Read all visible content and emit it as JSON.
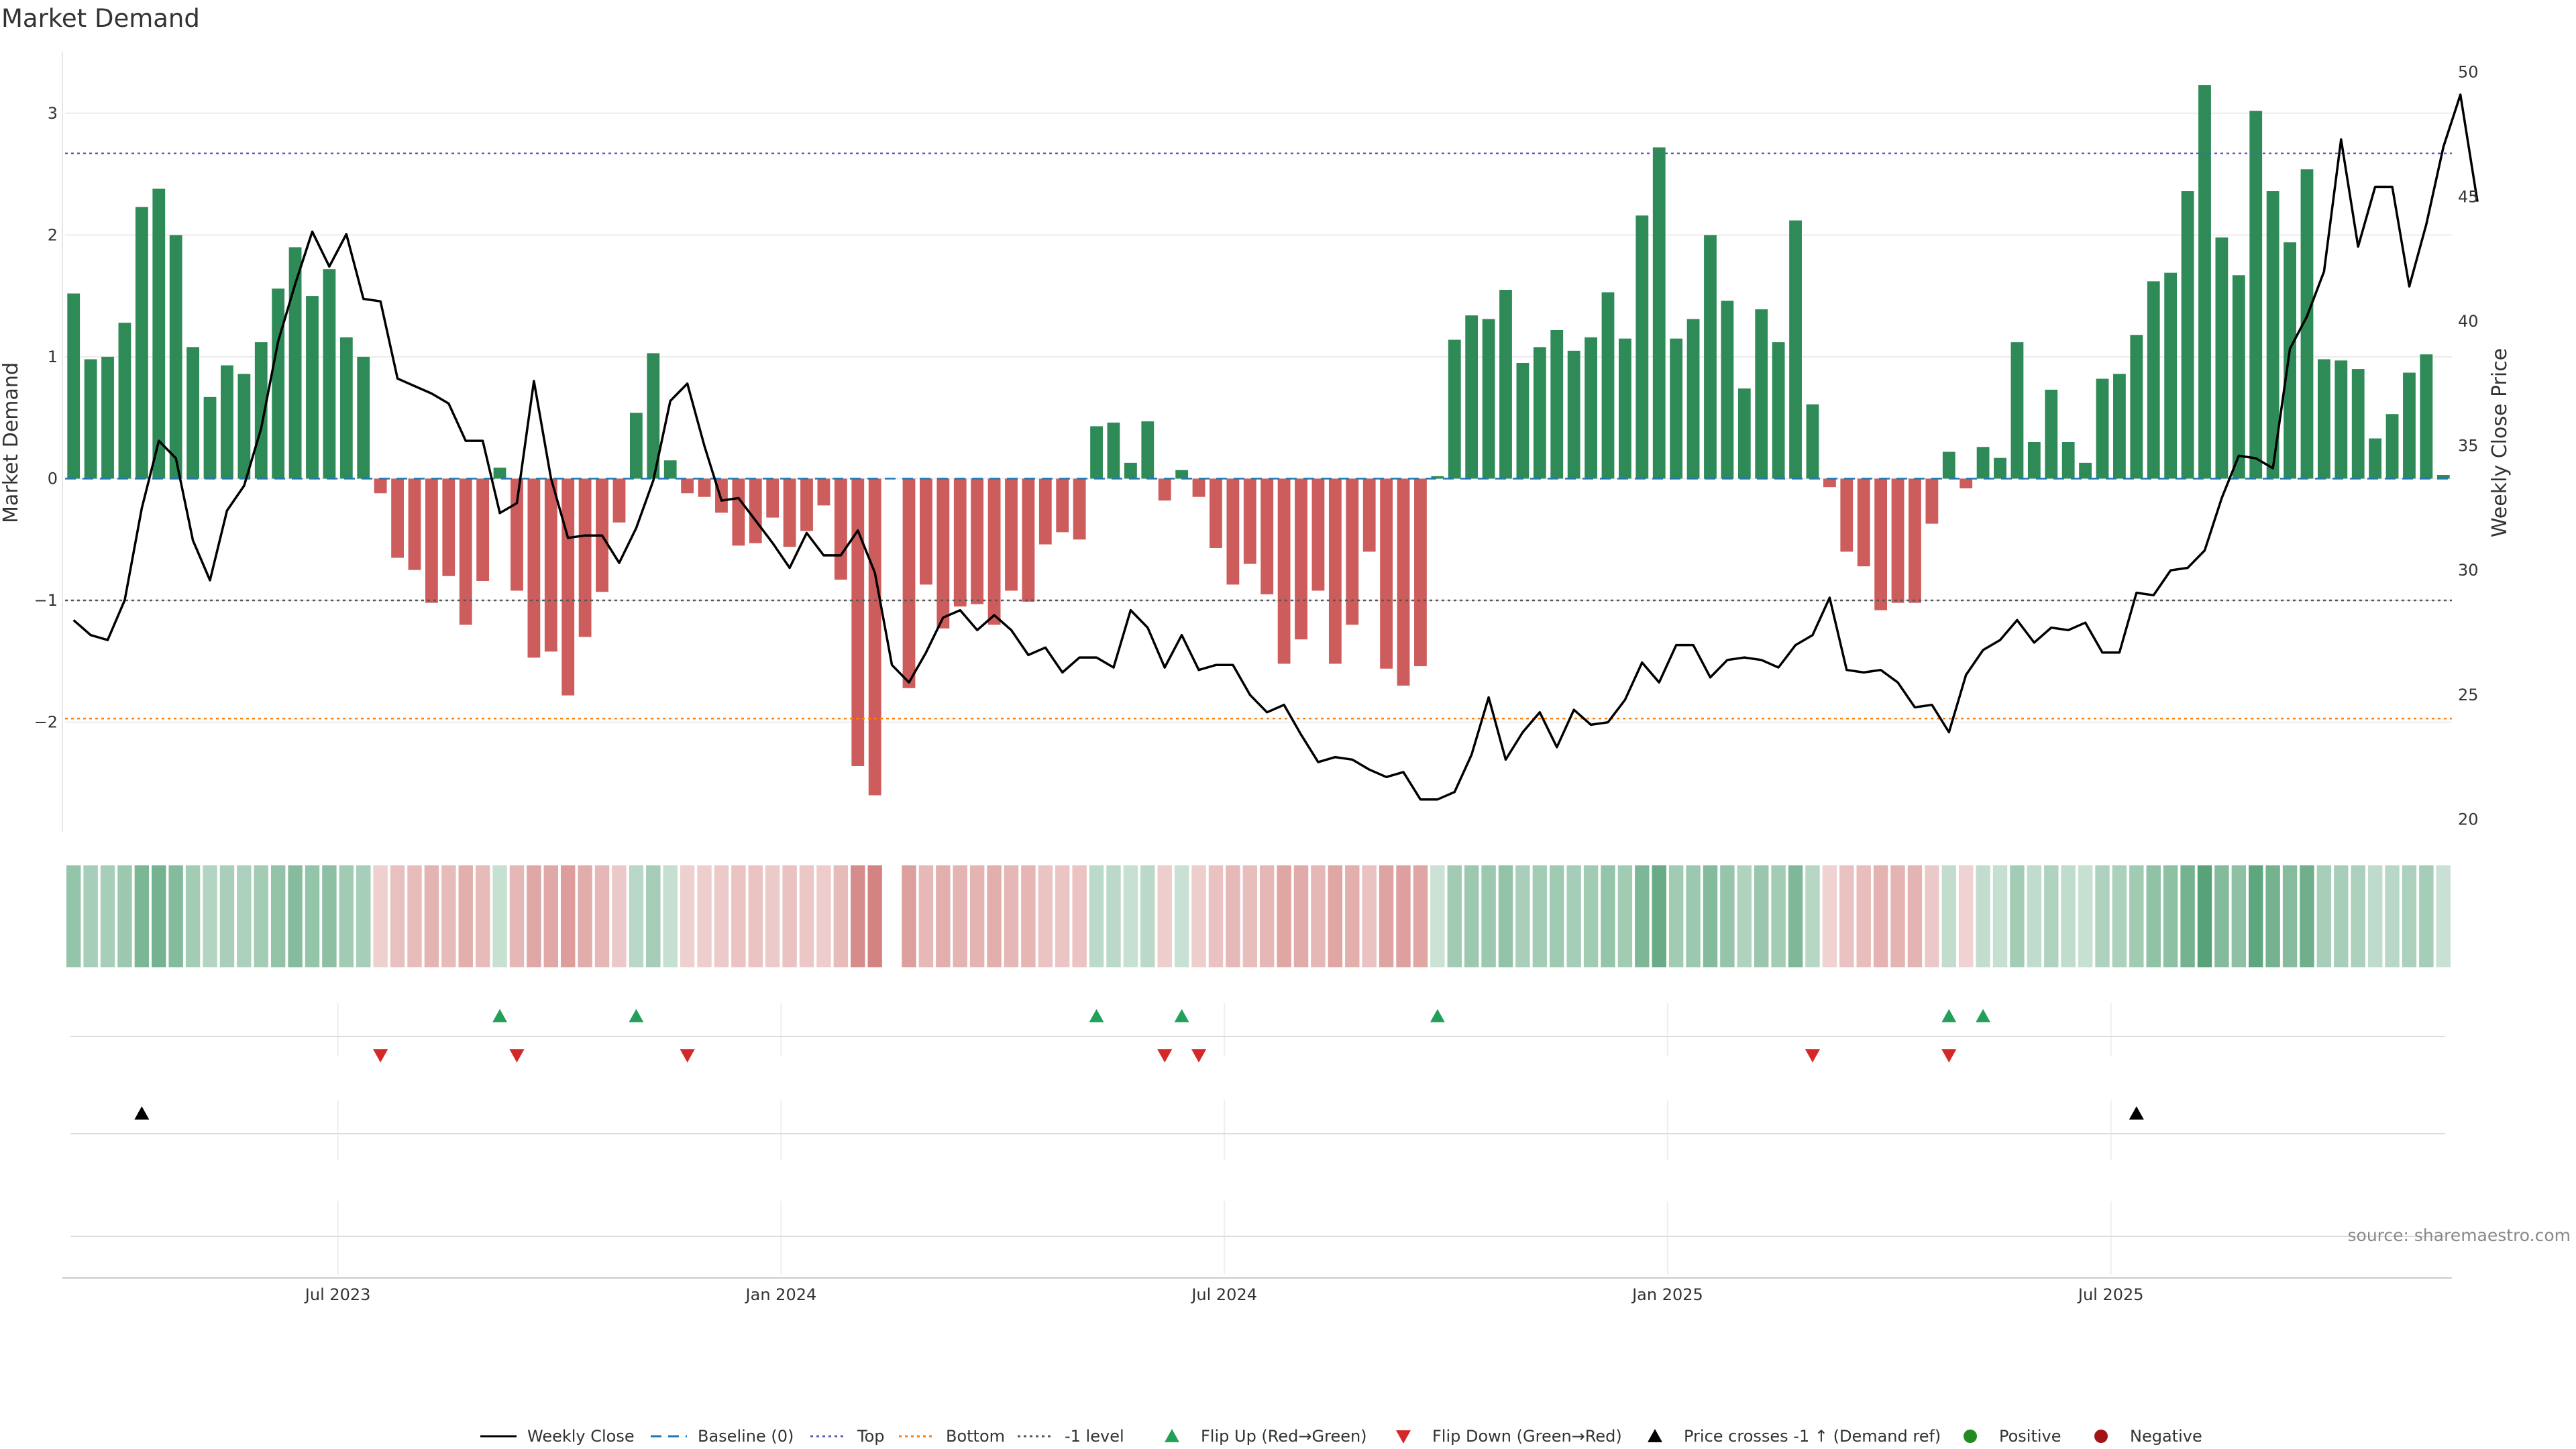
{
  "chart_data": {
    "type": "bar",
    "title": "Market Demand",
    "ylabel": "Market Demand",
    "y2label": "Weekly Close Price",
    "ylim": [
      -2.9,
      3.5
    ],
    "y2lim": [
      19.5,
      50.8
    ],
    "yticks": [
      3,
      2,
      1,
      0,
      -1,
      -2
    ],
    "ytick_labels": [
      "3",
      "2",
      "1",
      "0",
      "−1",
      "−2"
    ],
    "y2ticks": [
      50,
      45,
      40,
      35,
      30,
      25,
      20
    ],
    "xtick_labels": [
      {
        "index": 16,
        "label": "Jul 2023"
      },
      {
        "index": 42,
        "label": "Jan 2024"
      },
      {
        "index": 68,
        "label": "Jul 2024"
      },
      {
        "index": 94,
        "label": "Jan 2025"
      },
      {
        "index": 120,
        "label": "Jul 2025"
      }
    ],
    "reference_lines": {
      "baseline": 0,
      "top": 2.67,
      "bottom": -1.97,
      "minus_one": -1.0
    },
    "series": [
      {
        "name": "Market Demand",
        "type": "bar",
        "values": [
          1.52,
          0.98,
          1.0,
          1.28,
          2.23,
          2.38,
          2.0,
          1.08,
          0.67,
          0.93,
          0.86,
          1.12,
          1.56,
          1.9,
          1.5,
          1.72,
          1.16,
          1.0,
          -0.12,
          -0.65,
          -0.75,
          -1.02,
          -0.8,
          -1.2,
          -0.84,
          0.09,
          -0.92,
          -1.47,
          -1.42,
          -1.78,
          -1.3,
          -0.93,
          -0.36,
          0.54,
          1.03,
          0.15,
          -0.12,
          -0.15,
          -0.28,
          -0.55,
          -0.53,
          -0.32,
          -0.56,
          -0.43,
          -0.22,
          -0.83,
          -2.36,
          -2.6,
          0.0,
          -1.72,
          -0.87,
          -1.23,
          -1.05,
          -1.03,
          -1.2,
          -0.92,
          -1.01,
          -0.54,
          -0.44,
          -0.5,
          0.43,
          0.46,
          0.13,
          0.47,
          -0.18,
          0.07,
          -0.15,
          -0.57,
          -0.87,
          -0.7,
          -0.95,
          -1.52,
          -1.32,
          -0.92,
          -1.52,
          -1.2,
          -0.6,
          -1.56,
          -1.7,
          -1.54,
          0.02,
          1.14,
          1.34,
          1.31,
          1.55,
          0.95,
          1.08,
          1.22,
          1.05,
          1.16,
          1.53,
          1.15,
          2.16,
          2.72,
          1.15,
          1.31,
          2.0,
          1.46,
          0.74,
          1.39,
          1.12,
          2.12,
          0.61,
          -0.07,
          -0.6,
          -0.72,
          -1.08,
          -1.02,
          -1.02,
          -0.37,
          0.22,
          -0.08,
          0.26,
          0.17,
          1.12,
          0.3,
          0.73,
          0.3,
          0.13,
          0.82,
          0.86,
          1.18,
          1.62,
          1.69,
          2.36,
          3.23,
          1.98,
          1.67,
          3.02,
          2.36,
          1.94,
          2.54,
          0.98,
          0.97,
          0.9,
          0.33,
          0.53,
          0.87,
          1.02,
          0.03
        ]
      },
      {
        "name": "Weekly Close",
        "type": "line",
        "axis": "right",
        "values": [
          28.0,
          27.4,
          27.2,
          28.8,
          32.5,
          35.2,
          34.5,
          31.2,
          29.6,
          32.4,
          33.4,
          35.7,
          39.2,
          41.5,
          43.6,
          42.2,
          43.5,
          40.9,
          40.8,
          37.7,
          37.4,
          37.1,
          36.7,
          35.2,
          35.2,
          32.3,
          32.7,
          37.6,
          33.7,
          31.3,
          31.4,
          31.4,
          30.3,
          31.7,
          33.6,
          36.8,
          37.5,
          35.0,
          32.8,
          32.9,
          32.0,
          31.1,
          30.1,
          31.5,
          30.6,
          30.6,
          31.6,
          29.9,
          26.2,
          25.5,
          26.7,
          28.1,
          28.4,
          27.6,
          28.2,
          27.6,
          26.6,
          26.9,
          25.9,
          26.5,
          26.5,
          26.1,
          28.4,
          27.7,
          26.1,
          27.4,
          26.0,
          26.2,
          26.2,
          25.0,
          24.3,
          24.6,
          23.4,
          22.3,
          22.5,
          22.4,
          22.0,
          21.7,
          21.9,
          20.8,
          20.8,
          21.1,
          22.6,
          24.9,
          22.4,
          23.5,
          24.3,
          22.9,
          24.4,
          23.8,
          23.9,
          24.8,
          26.3,
          25.5,
          27.0,
          27.0,
          25.7,
          26.4,
          26.5,
          26.4,
          26.1,
          27.0,
          27.4,
          28.9,
          26.0,
          25.9,
          26.0,
          25.5,
          24.5,
          24.6,
          23.5,
          25.8,
          26.8,
          27.2,
          28.0,
          27.1,
          27.7,
          27.6,
          27.9,
          26.7,
          26.7,
          29.1,
          29.0,
          30.0,
          30.1,
          30.8,
          32.9,
          34.6,
          34.5,
          34.1,
          38.9,
          40.2,
          42.0,
          47.3,
          43.0,
          45.4,
          45.4,
          41.4,
          43.9,
          47.0,
          49.1,
          44.8
        ]
      }
    ],
    "heat_strip": {
      "name": "Demand intensity",
      "colors": {
        "positive": "#2e8b57",
        "negative": "#c0504d",
        "gap": "#ffffff"
      }
    },
    "signals": {
      "flip_up_indices": [
        25,
        33,
        60,
        65,
        80,
        110,
        112
      ],
      "flip_down_indices": [
        18,
        26,
        36,
        64,
        66,
        102,
        110
      ],
      "price_cross_indices": [
        4,
        121
      ]
    },
    "legend": {
      "placement": "bottom-center",
      "items": [
        {
          "label": "Weekly Close",
          "kind": "line",
          "color": "#000000",
          "dash": "none"
        },
        {
          "label": "Baseline (0)",
          "kind": "line",
          "color": "#1f77b4",
          "dash": "16,10"
        },
        {
          "label": "Top",
          "kind": "line",
          "color": "#5b5bb8",
          "dash": "4,5"
        },
        {
          "label": "Bottom",
          "kind": "line",
          "color": "#ff7f0e",
          "dash": "4,5"
        },
        {
          "label": "-1 level",
          "kind": "line",
          "color": "#555555",
          "dash": "4,5"
        },
        {
          "label": "Flip Up (Red→Green)",
          "kind": "triangle-up",
          "color": "#22a05a"
        },
        {
          "label": "Flip Down (Green→Red)",
          "kind": "triangle-down",
          "color": "#d62728"
        },
        {
          "label": "Price crosses -1 ↑ (Demand ref)",
          "kind": "triangle-up",
          "color": "#000000"
        },
        {
          "label": "Positive",
          "kind": "circle",
          "color": "#228b22"
        },
        {
          "label": "Negative",
          "kind": "circle",
          "color": "#a31515"
        }
      ]
    },
    "colors": {
      "positive_bar": "#2e8b57",
      "negative_bar": "#cd5c5c",
      "price_line": "#000000",
      "top_line": "#5b5bb8",
      "bottom_line": "#ff7f0e",
      "minus_one_line": "#555555",
      "baseline": "#1f77b4"
    }
  },
  "source": "source: sharemaestro.com"
}
